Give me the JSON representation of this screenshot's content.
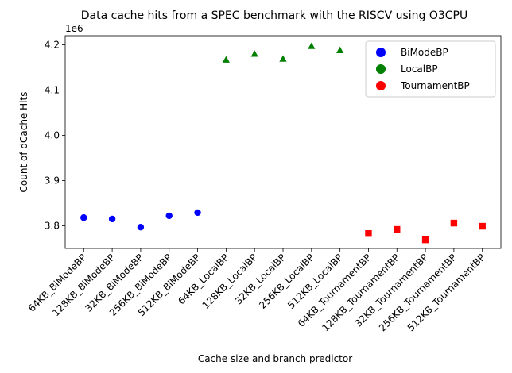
{
  "chart_data": {
    "type": "scatter",
    "title": "Data cache hits from a SPEC benchmark with the RISCV using O3CPU",
    "xlabel": "Cache size and branch predictor",
    "ylabel": "Count of dCache Hits",
    "y_offset_label": "1e6",
    "y_scale": 1000000,
    "ylim": [
      3.75,
      4.22
    ],
    "yticks": [
      3.8,
      3.9,
      4.0,
      4.1,
      4.2
    ],
    "ytick_labels": [
      "3.8",
      "3.9",
      "4.0",
      "4.1",
      "4.2"
    ],
    "grid": false,
    "legend_position": "top-right",
    "categories": [
      "64KB_BiModeBP",
      "128KB_BiModeBP",
      "32KB_BiModeBP",
      "256KB_BiModeBP",
      "512KB_BiModeBP",
      "64KB_LocalBP",
      "128KB_LocalBP",
      "32KB_LocalBP",
      "256KB_LocalBP",
      "512KB_LocalBP",
      "64KB_TournamentBP",
      "128KB_TournamentBP",
      "32KB_TournamentBP",
      "256KB_TournamentBP",
      "512KB_TournamentBP"
    ],
    "series": [
      {
        "name": "BiModeBP",
        "color": "#0000ff",
        "marker": "circle",
        "x": [
          0,
          1,
          2,
          3,
          4
        ],
        "values": [
          3818000,
          3815000,
          3797000,
          3822000,
          3829000
        ]
      },
      {
        "name": "LocalBP",
        "color": "#008000",
        "marker": "triangle",
        "x": [
          5,
          6,
          7,
          8,
          9
        ],
        "values": [
          4167000,
          4180000,
          4169000,
          4197000,
          4188000
        ]
      },
      {
        "name": "TournamentBP",
        "color": "#ff0000",
        "marker": "square",
        "x": [
          10,
          11,
          12,
          13,
          14
        ],
        "values": [
          3783000,
          3792000,
          3769000,
          3806000,
          3799000
        ]
      }
    ]
  }
}
